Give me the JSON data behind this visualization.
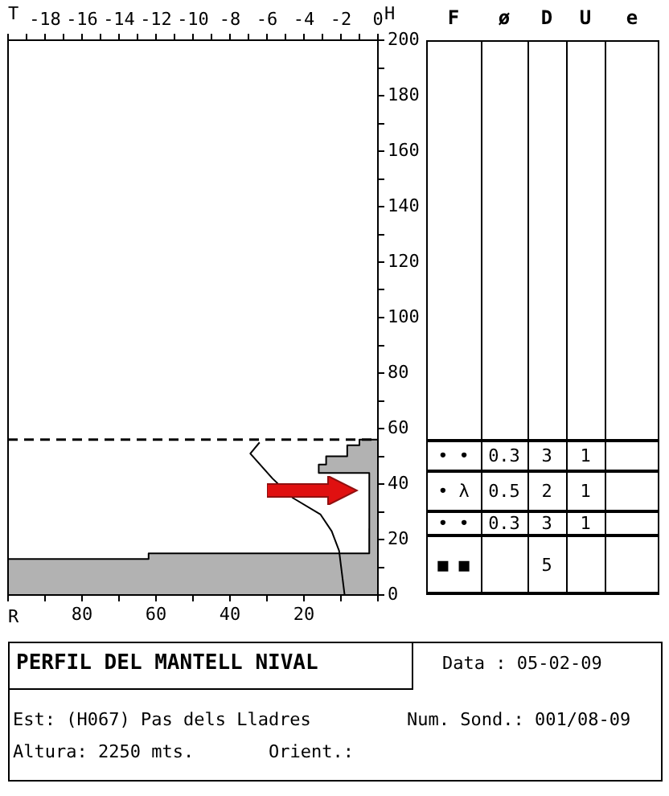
{
  "chart_data": [
    {
      "type": "line",
      "xlabel": "R",
      "x2label": "T",
      "ylabel": "H",
      "grid": false,
      "marker": "none",
      "xlim": [
        100,
        0
      ],
      "xticks": [
        {
          "value": 100,
          "label": null
        },
        {
          "value": 90,
          "label": null
        },
        80,
        {
          "value": 70,
          "label": null
        },
        60,
        {
          "value": 50,
          "label": null
        },
        40,
        {
          "value": 30,
          "label": null
        },
        20,
        {
          "value": 10,
          "label": null
        },
        {
          "value": 0,
          "label": null
        }
      ],
      "x2lim": [
        -20,
        0
      ],
      "x2ticks": [
        {
          "value": -20,
          "label": null
        },
        {
          "value": -19,
          "label": null
        },
        -18,
        {
          "value": -17,
          "label": null
        },
        -16,
        {
          "value": -15,
          "label": null
        },
        -14,
        {
          "value": -13,
          "label": null
        },
        -12,
        {
          "value": -11,
          "label": null
        },
        -10,
        {
          "value": -9,
          "label": null
        },
        -8,
        {
          "value": -7,
          "label": null
        },
        -6,
        {
          "value": -5,
          "label": null
        },
        -4,
        {
          "value": -3,
          "label": null
        },
        -2,
        {
          "value": -1,
          "label": null
        },
        0
      ],
      "ylim": [
        0,
        200
      ],
      "yticks": [
        0,
        {
          "value": 10,
          "label": null
        },
        20,
        {
          "value": 30,
          "label": null
        },
        40,
        {
          "value": 50,
          "label": null
        },
        60,
        {
          "value": 70,
          "label": null
        },
        80,
        {
          "value": 90,
          "label": null
        },
        100,
        {
          "value": 110,
          "label": null
        },
        120,
        {
          "value": 130,
          "label": null
        },
        140,
        {
          "value": 150,
          "label": null
        },
        160,
        {
          "value": 170,
          "label": null
        },
        180,
        {
          "value": 190,
          "label": null
        },
        200
      ],
      "series": [
        {
          "type": "area",
          "color": "#000000",
          "x": [
            100,
            100,
            62,
            62,
            2.6,
            2.6,
            2.2,
            2.2,
            16,
            16,
            14,
            14,
            8.3,
            8.3,
            5,
            5,
            0
          ],
          "values": [
            0,
            13,
            13,
            15,
            15,
            24,
            24,
            44,
            44,
            47,
            47,
            50,
            50,
            54,
            54,
            56,
            56
          ]
        },
        {
          "type": "line",
          "axis": "x2",
          "color": "#000000",
          "x": [
            -6.4,
            -6.9,
            -5.7,
            -4.6,
            -3.1,
            -2.5,
            -2.1,
            -1.8
          ],
          "values": [
            55,
            51,
            42,
            35,
            29,
            23,
            16,
            0
          ]
        }
      ],
      "ref_lines": [
        {
          "axis": "y",
          "value": 56,
          "line_style": "dashed",
          "color": "#000000"
        }
      ]
    },
    {
      "type": "other",
      "categories": [
        "F",
        "ø",
        "D",
        "U",
        "e"
      ],
      "cell_labels": [
        [
          "• •",
          "0.3",
          "3",
          "1",
          null
        ],
        [
          "• λ",
          "0.5",
          "2",
          "1",
          null
        ],
        [
          "• •",
          "0.3",
          "3",
          "1",
          null
        ],
        [
          "■ ■",
          null,
          "5",
          null,
          null
        ]
      ]
    },
    {
      "type": "other",
      "title": "PERFIL DEL MANTELL NIVAL",
      "annotations": [
        "Data : 05-02-09",
        "Est: (H067) Pas dels Lladres",
        "Num. Sond.: 001/08-09",
        "Altura: 2250 mts.",
        "Orient.:"
      ]
    }
  ]
}
